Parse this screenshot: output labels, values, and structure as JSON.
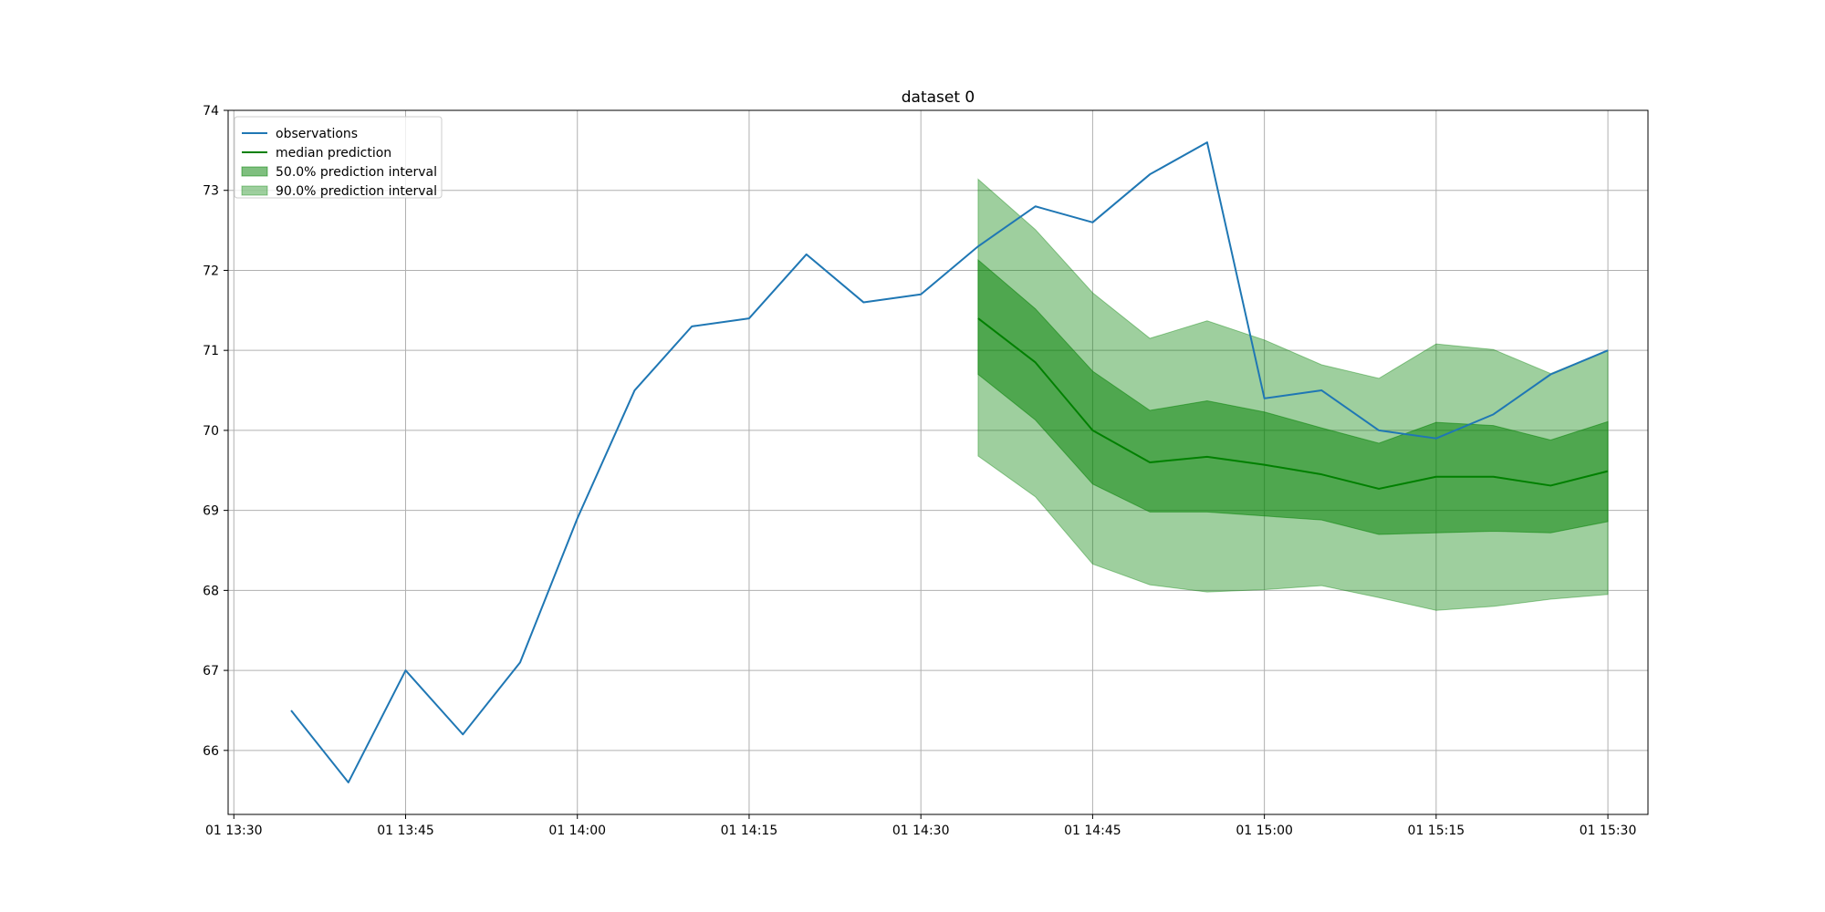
{
  "chart_data": {
    "type": "line",
    "title": "dataset 0",
    "xlabel": "",
    "ylabel": "",
    "xlim": [
      "01 13:29:30",
      "01 15:33:30"
    ],
    "ylim": [
      65.2,
      74.0
    ],
    "grid": true,
    "legend_position": "top-left",
    "x_ticks": [
      "01 13:30",
      "01 13:45",
      "01 14:00",
      "01 14:15",
      "01 14:30",
      "01 14:45",
      "01 15:00",
      "01 15:15",
      "01 15:30"
    ],
    "y_ticks": [
      "66",
      "67",
      "68",
      "69",
      "70",
      "71",
      "72",
      "73",
      "74"
    ],
    "series": [
      {
        "name": "observations",
        "color": "#1f77b4",
        "x": [
          "01 13:35",
          "01 13:40",
          "01 13:45",
          "01 13:50",
          "01 13:55",
          "01 14:00",
          "01 14:05",
          "01 14:10",
          "01 14:15",
          "01 14:20",
          "01 14:25",
          "01 14:30",
          "01 14:35",
          "01 14:40",
          "01 14:45",
          "01 14:50",
          "01 14:55",
          "01 15:00",
          "01 15:05",
          "01 15:10",
          "01 15:15",
          "01 15:20",
          "01 15:25",
          "01 15:30"
        ],
        "values": [
          66.5,
          65.6,
          67.0,
          66.2,
          67.1,
          68.9,
          70.5,
          71.3,
          71.4,
          72.2,
          71.6,
          71.7,
          72.3,
          72.8,
          72.6,
          73.2,
          73.6,
          70.4,
          70.5,
          70.0,
          69.9,
          70.2,
          70.7,
          71.0
        ]
      },
      {
        "name": "median prediction",
        "color": "#008000",
        "x": [
          "01 14:35",
          "01 14:40",
          "01 14:45",
          "01 14:50",
          "01 14:55",
          "01 15:00",
          "01 15:05",
          "01 15:10",
          "01 15:15",
          "01 15:20",
          "01 15:25",
          "01 15:30"
        ],
        "values": [
          71.4,
          70.85,
          70.0,
          69.6,
          69.67,
          69.57,
          69.45,
          69.27,
          69.42,
          69.42,
          69.31,
          69.49
        ]
      }
    ],
    "intervals": [
      {
        "name": "50.0% prediction interval",
        "color": "#008000",
        "opacity": 0.5,
        "x": [
          "01 14:35",
          "01 14:40",
          "01 14:45",
          "01 14:50",
          "01 14:55",
          "01 15:00",
          "01 15:05",
          "01 15:10",
          "01 15:15",
          "01 15:20",
          "01 15:25",
          "01 15:30"
        ],
        "lower": [
          70.7,
          70.13,
          69.33,
          68.98,
          68.98,
          68.93,
          68.88,
          68.7,
          68.72,
          68.74,
          68.72,
          68.86
        ],
        "upper": [
          72.13,
          71.52,
          70.74,
          70.25,
          70.37,
          70.23,
          70.03,
          69.84,
          70.1,
          70.06,
          69.88,
          70.11
        ]
      },
      {
        "name": "90.0% prediction interval",
        "color": "#008000",
        "opacity": 0.38,
        "x": [
          "01 14:35",
          "01 14:40",
          "01 14:45",
          "01 14:50",
          "01 14:55",
          "01 15:00",
          "01 15:05",
          "01 15:10",
          "01 15:15",
          "01 15:20",
          "01 15:25",
          "01 15:30"
        ],
        "lower": [
          69.68,
          69.17,
          68.33,
          68.07,
          67.98,
          68.01,
          68.06,
          67.91,
          67.75,
          67.8,
          67.89,
          67.95
        ],
        "upper": [
          73.14,
          72.51,
          71.72,
          71.15,
          71.37,
          71.13,
          70.82,
          70.65,
          71.08,
          71.01,
          70.71,
          71.0
        ]
      }
    ]
  }
}
